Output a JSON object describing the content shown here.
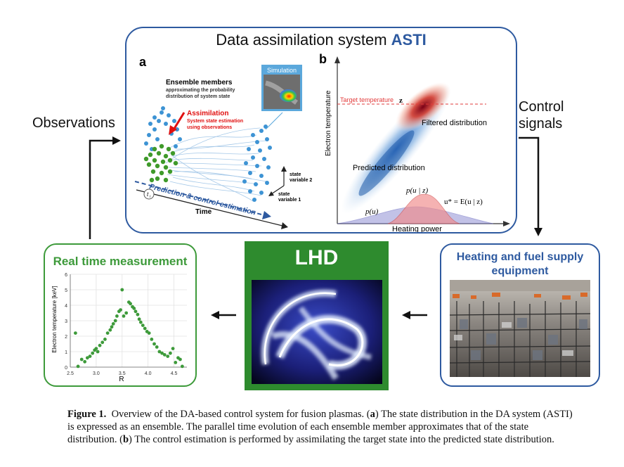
{
  "asti": {
    "title_prefix": "Data assimilation system",
    "title_brand": "ASTI",
    "brand_color": "#2e5aa0"
  },
  "panel_a": {
    "letter": "a",
    "ensemble_title": "Ensemble members",
    "ensemble_sub1": "approximating the probability",
    "ensemble_sub2": "distribution of system state",
    "assimilation_title": "Assimilation",
    "assimilation_sub1": "System state estimation",
    "assimilation_sub2": "using observations",
    "simulation_label": "Simulation",
    "prediction_label": "Prediction & control estimation",
    "time_label": "Time",
    "time_marker": "t",
    "time_marker_sub": "i",
    "state_var2_1": "state",
    "state_var2_2": "variable 2",
    "state_var1_1": "state",
    "state_var1_2": "variable 1"
  },
  "panel_b": {
    "letter": "b",
    "target_label": "Target temperature",
    "target_symbol": "z",
    "filtered_label": "Filtered distribution",
    "predicted_label": "Predicted distribution",
    "y_axis_label": "Electron temperature",
    "x_axis_label": "Heating power",
    "pu_label": "p(u)",
    "puz_label": "p(u | z)",
    "ustar_label": "u* = E(u | z)"
  },
  "flow": {
    "observations": "Observations",
    "control_line1": "Control",
    "control_line2": "signals"
  },
  "rtm": {
    "title": "Real time measurement",
    "color": "#3d9a3a"
  },
  "lhd": {
    "title": "LHD",
    "color": "#2e8b2e"
  },
  "heating": {
    "title_line1": "Heating and fuel supply",
    "title_line2": "equipment"
  },
  "caption": {
    "figure_label": "Figure 1.",
    "text1": "Overview of the DA-based control system for fusion plasmas. (",
    "a": "a",
    "text2": ") The state distribution in the DA system (ASTI) is expressed as an ensemble. The parallel time evolution of each ensemble member approximates that of the state distribution. (",
    "b": "b",
    "text3": ") The control estimation is performed by assimilating the target state into the predicted state distribution."
  },
  "chart_data": {
    "type": "scatter",
    "title": "",
    "xlabel": "R",
    "ylabel": "Electron temperature [keV]",
    "xlim": [
      2.5,
      4.75
    ],
    "ylim": [
      0,
      6
    ],
    "x_ticks": [
      "2.5",
      "3.0",
      "3.5",
      "4.0",
      "4.5"
    ],
    "y_ticks": [
      "0",
      "1",
      "2",
      "3",
      "4",
      "5",
      "6"
    ],
    "grid": true,
    "color": "#3d9a3a",
    "x": [
      2.6,
      2.65,
      2.72,
      2.78,
      2.83,
      2.88,
      2.93,
      2.97,
      3.0,
      3.03,
      3.07,
      3.12,
      3.17,
      3.22,
      3.27,
      3.3,
      3.33,
      3.37,
      3.4,
      3.44,
      3.47,
      3.5,
      3.53,
      3.58,
      3.63,
      3.66,
      3.7,
      3.73,
      3.76,
      3.8,
      3.83,
      3.86,
      3.9,
      3.94,
      3.98,
      4.02,
      4.07,
      4.12,
      4.17,
      4.22,
      4.27,
      4.32,
      4.38,
      4.43,
      4.48,
      4.53,
      4.58,
      4.62,
      4.66
    ],
    "y": [
      2.2,
      0.05,
      0.5,
      0.35,
      0.6,
      0.7,
      0.9,
      1.1,
      1.2,
      1.0,
      1.4,
      1.6,
      1.8,
      2.2,
      2.4,
      2.6,
      2.8,
      3.0,
      3.3,
      3.6,
      3.7,
      5.0,
      3.3,
      3.5,
      4.2,
      4.1,
      3.9,
      3.8,
      3.6,
      3.4,
      3.1,
      2.9,
      2.7,
      2.5,
      2.3,
      2.2,
      1.8,
      1.5,
      1.3,
      1.0,
      0.9,
      0.8,
      0.7,
      0.9,
      1.2,
      0.3,
      0.6,
      0.5,
      0.05
    ]
  }
}
